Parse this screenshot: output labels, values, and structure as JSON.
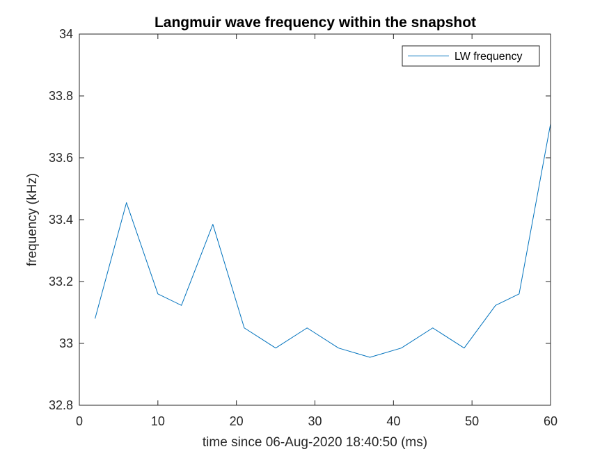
{
  "chart_data": {
    "type": "line",
    "title": "Langmuir wave frequency within the snapshot",
    "xlabel": "time since 06-Aug-2020 18:40:50 (ms)",
    "ylabel": "frequency (kHz)",
    "xlim": [
      0,
      60
    ],
    "ylim": [
      32.8,
      34
    ],
    "xticks": [
      0,
      10,
      20,
      30,
      40,
      50,
      60
    ],
    "xtick_labels": [
      "0",
      "10",
      "20",
      "30",
      "40",
      "50",
      "60"
    ],
    "yticks": [
      32.8,
      33,
      33.2,
      33.4,
      33.6,
      33.8,
      34
    ],
    "ytick_labels": [
      "32.8",
      "33",
      "33.2",
      "33.4",
      "33.6",
      "33.8",
      "34"
    ],
    "grid": false,
    "legend_position": "top-right",
    "series": [
      {
        "name": "LW frequency",
        "color": "#0072BD",
        "x": [
          2,
          6,
          10,
          13,
          17,
          21,
          25,
          29,
          33,
          37,
          41,
          45,
          49,
          53,
          56,
          60
        ],
        "y": [
          33.08,
          33.455,
          33.16,
          33.123,
          33.385,
          33.05,
          32.985,
          33.05,
          32.985,
          32.955,
          32.985,
          33.05,
          32.985,
          33.123,
          33.16,
          33.71
        ]
      }
    ]
  }
}
